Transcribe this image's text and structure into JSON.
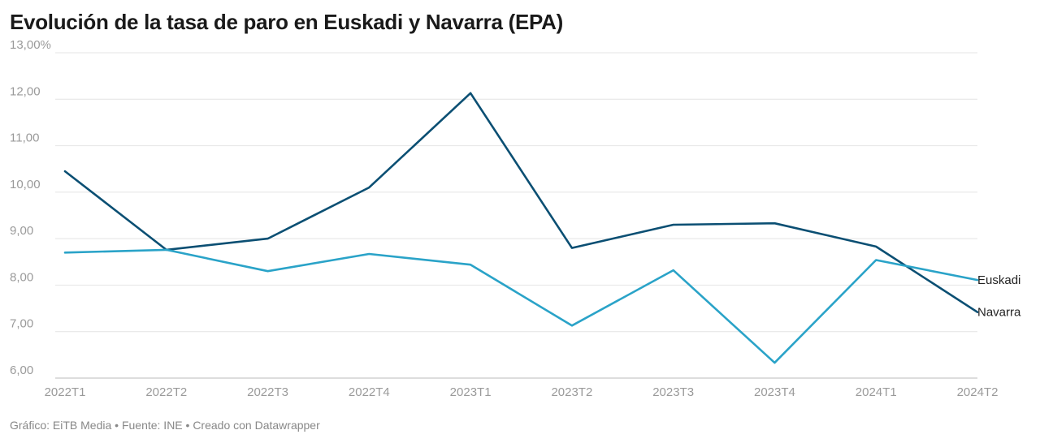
{
  "title": "Evolución de la tasa de paro en Euskadi y Navarra (EPA)",
  "footer": "Gráfico: EiTB Media • Fuente: INE • Creado con Datawrapper",
  "colors": {
    "Euskadi": "#2aa3c8",
    "Navarra": "#0b4f73",
    "grid": "#e4e4e4",
    "axis": "#bbbbbb"
  },
  "chart_data": {
    "type": "line",
    "title": "Evolución de la tasa de paro en Euskadi y Navarra (EPA)",
    "xlabel": "",
    "ylabel": "",
    "ylim": [
      6,
      13
    ],
    "yticks": [
      6,
      7,
      8,
      9,
      10,
      11,
      12,
      13
    ],
    "ytick_labels": [
      "6,00",
      "7,00",
      "8,00",
      "9,00",
      "10,00",
      "11,00",
      "12,00",
      "13,00%"
    ],
    "grid": true,
    "legend": "labels at right end of lines",
    "categories": [
      "2022T1",
      "2022T2",
      "2022T3",
      "2022T4",
      "2023T1",
      "2023T2",
      "2023T3",
      "2023T4",
      "2024T1",
      "2024T2"
    ],
    "series": [
      {
        "name": "Euskadi",
        "values": [
          8.7,
          8.76,
          8.3,
          8.67,
          8.44,
          7.13,
          8.32,
          6.33,
          8.54,
          8.11
        ]
      },
      {
        "name": "Navarra",
        "values": [
          10.45,
          8.76,
          9.0,
          10.1,
          12.13,
          8.8,
          9.3,
          9.33,
          8.83,
          7.42
        ]
      }
    ]
  }
}
